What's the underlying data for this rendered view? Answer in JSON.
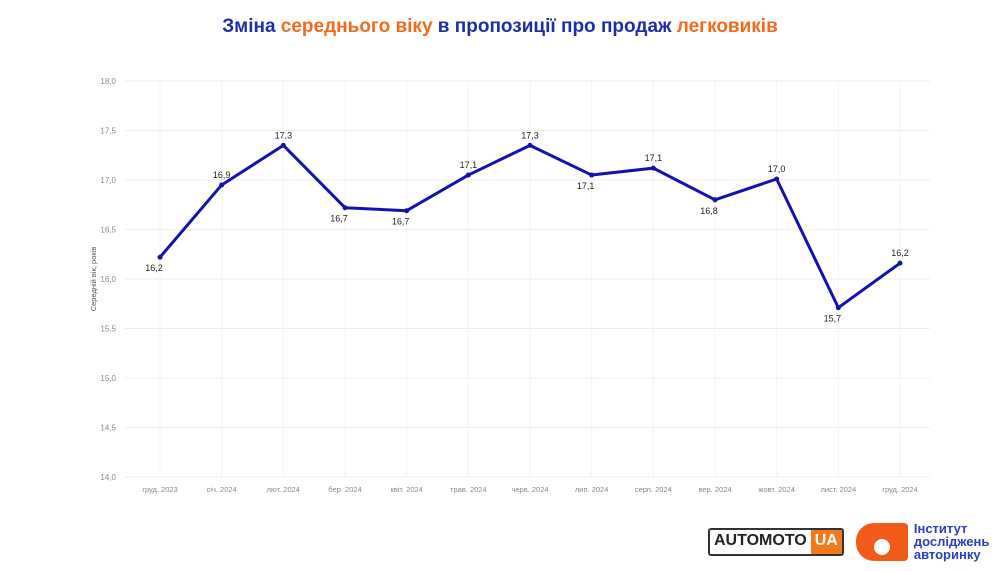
{
  "title": {
    "part1": "Зміна ",
    "part2": "середнього віку",
    "part3": " в пропозиції про продаж ",
    "part4": "легковиків"
  },
  "colors": {
    "title": "#1b2fa8",
    "accent": "#f26a1b",
    "line": "#1212b0"
  },
  "chart_data": {
    "type": "line",
    "title": "Зміна середнього віку в пропозиції про продаж легковиків",
    "xlabel": "",
    "ylabel": "Середній вік, років",
    "ylim": [
      14.0,
      18.0
    ],
    "yticks": [
      "14,0",
      "14,5",
      "15,0",
      "15,5",
      "16,0",
      "16,5",
      "17,0",
      "17,5",
      "18,0"
    ],
    "categories": [
      "груд. 2023",
      "січ. 2024",
      "лют. 2024",
      "бер. 2024",
      "квіт. 2024",
      "трав. 2024",
      "черв. 2024",
      "лип. 2024",
      "серп. 2024",
      "вер. 2024",
      "жовт. 2024",
      "лист. 2024",
      "груд. 2024"
    ],
    "values": [
      16.22,
      16.95,
      17.35,
      16.72,
      16.69,
      17.05,
      17.35,
      17.05,
      17.12,
      16.8,
      17.01,
      15.71,
      16.16
    ],
    "labels": [
      "16,2",
      "16,9",
      "17,3",
      "16,7",
      "16,7",
      "17,1",
      "17,3",
      "17,1",
      "17,1",
      "16,8",
      "17,0",
      "15,7",
      "16,2"
    ],
    "label_pos": [
      "below",
      "above",
      "above",
      "below",
      "below",
      "above",
      "above",
      "below",
      "above",
      "below",
      "above",
      "below",
      "above"
    ],
    "grid": true
  },
  "logos": {
    "automoto_a": "AUTOMOTO",
    "automoto_b": "UA",
    "institute": [
      "Інститут",
      "досліджень",
      "авторинку"
    ]
  }
}
